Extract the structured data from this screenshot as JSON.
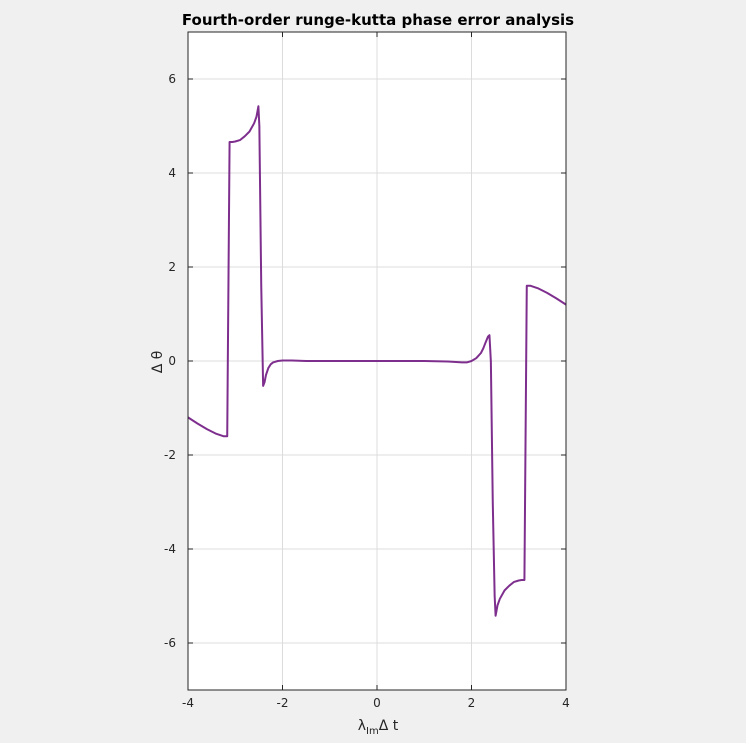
{
  "chart_data": {
    "type": "line",
    "title": "Fourth-order runge-kutta phase error analysis",
    "xlabel_main": "λ",
    "xlabel_sub": "Im",
    "xlabel_rest": "Δ t",
    "ylabel": "Δ θ",
    "xlim": [
      -4,
      4
    ],
    "ylim": [
      -7,
      7
    ],
    "xticks": [
      -4,
      -2,
      0,
      2,
      4
    ],
    "yticks": [
      -6,
      -4,
      -2,
      0,
      2,
      4,
      6
    ],
    "xtick_labels": [
      "-4",
      "-2",
      "0",
      "2",
      "4"
    ],
    "ytick_labels": [
      "-6",
      "-4",
      "-2",
      "0",
      "2",
      "4",
      "6"
    ],
    "grid": true,
    "line_color": "#7e2f8e",
    "series": [
      {
        "x": [
          -4.0,
          -3.8,
          -3.6,
          -3.4,
          -3.25,
          -3.17,
          -3.12,
          -3.1,
          -3.06,
          -3.0,
          -2.9,
          -2.8,
          -2.7,
          -2.6,
          -2.55,
          -2.51,
          -2.49,
          -2.45,
          -2.41,
          -2.38,
          -2.35,
          -2.3,
          -2.25,
          -2.2,
          -2.1,
          -2.0,
          -1.9,
          -1.8,
          -1.5,
          -1.0,
          -0.5,
          0.0,
          0.5,
          1.0,
          1.5,
          1.8,
          1.9,
          2.0,
          2.1,
          2.2,
          2.25,
          2.3,
          2.35,
          2.38,
          2.41,
          2.45,
          2.49,
          2.51,
          2.55,
          2.6,
          2.7,
          2.8,
          2.9,
          3.0,
          3.06,
          3.1,
          3.12,
          3.17,
          3.25,
          3.4,
          3.6,
          3.8,
          4.0
        ],
        "y": [
          -1.2,
          -1.33,
          -1.45,
          -1.55,
          -1.6,
          -1.6,
          4.66,
          4.66,
          4.66,
          4.67,
          4.7,
          4.78,
          4.88,
          5.06,
          5.2,
          5.42,
          5.0,
          1.6,
          -0.53,
          -0.45,
          -0.3,
          -0.15,
          -0.07,
          -0.03,
          0.0,
          0.01,
          0.01,
          0.01,
          0.0,
          0.0,
          0.0,
          0.0,
          0.0,
          0.0,
          -0.01,
          -0.03,
          -0.03,
          0.0,
          0.06,
          0.17,
          0.27,
          0.4,
          0.52,
          0.55,
          -0.01,
          -3.0,
          -5.0,
          -5.42,
          -5.2,
          -5.06,
          -4.88,
          -4.78,
          -4.7,
          -4.67,
          -4.66,
          -4.66,
          -4.66,
          1.6,
          1.6,
          1.55,
          1.45,
          1.33,
          1.2
        ]
      }
    ]
  }
}
